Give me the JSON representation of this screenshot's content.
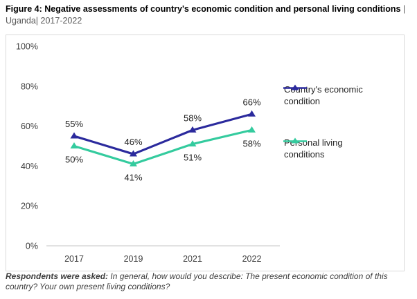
{
  "title": {
    "bold": "Figure 4: Negative assessments of country's economic condition and personal living conditions",
    "regular": " | Uganda| 2017-2022"
  },
  "footnote": {
    "bold": "Respondents were asked:",
    "regular": " In general, how would you describe: The present economic condition of this country? Your own present living conditions?"
  },
  "chart_data": {
    "type": "line",
    "title": "Negative assessments of country's economic condition and personal living conditions | Uganda | 2017-2022",
    "categories": [
      "2017",
      "2019",
      "2021",
      "2022"
    ],
    "series": [
      {
        "name": "Country's economic condition",
        "values": [
          55,
          46,
          58,
          66
        ],
        "color": "#2B2A9D",
        "marker": "triangle-up",
        "label_position": "above"
      },
      {
        "name": "Personal living conditions",
        "values": [
          50,
          41,
          51,
          58
        ],
        "color": "#34CB9E",
        "marker": "triangle-up",
        "label_position": "below"
      }
    ],
    "xlabel": "",
    "ylabel": "",
    "ylim": [
      0,
      100
    ],
    "yticks": [
      0,
      20,
      40,
      60,
      80,
      100
    ],
    "ytick_suffix": "%",
    "data_label_suffix": "%",
    "grid": false,
    "legend_position": "right",
    "data_labels": true
  },
  "colors": {
    "axis_line": "#d9d9d9",
    "box_border": "#d9d9d9",
    "tick_text": "#3f3f3f",
    "data_label_text": "#1f1f1f",
    "subtitle_text": "#595959",
    "footnote_text": "#3d3d3d"
  }
}
